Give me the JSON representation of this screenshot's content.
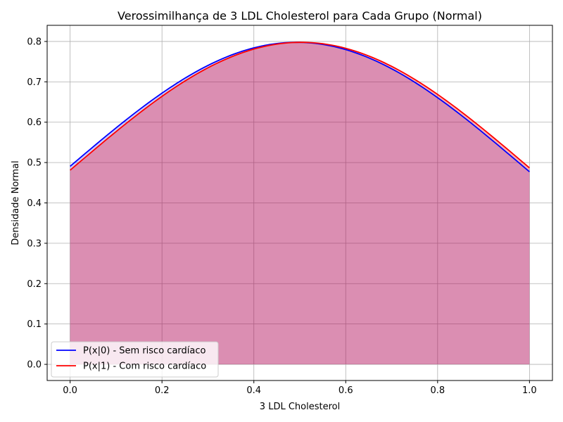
{
  "chart_data": {
    "type": "line",
    "title": "Verossimilhança de 3 LDL Cholesterol para Cada Grupo (Normal)",
    "xlabel": "3 LDL Cholesterol",
    "ylabel": "Densidade Normal",
    "xlim": [
      -0.05,
      1.05
    ],
    "ylim": [
      -0.04,
      0.84
    ],
    "xticks": [
      0.0,
      0.2,
      0.4,
      0.6,
      0.8,
      1.0
    ],
    "xtick_labels": [
      "0.0",
      "0.2",
      "0.4",
      "0.6",
      "0.8",
      "1.0"
    ],
    "yticks": [
      0.0,
      0.1,
      0.2,
      0.3,
      0.4,
      0.5,
      0.6,
      0.7,
      0.8
    ],
    "ytick_labels": [
      "0.0",
      "0.1",
      "0.2",
      "0.3",
      "0.4",
      "0.5",
      "0.6",
      "0.7",
      "0.8"
    ],
    "grid": true,
    "legend_location": "bottom-left",
    "series": [
      {
        "name": "P(x|0) - Sem risco cardíaco",
        "color": "#0000ff",
        "fill_color": "#0000ff",
        "mean": 0.493,
        "std": 0.5,
        "x": [
          0.0,
          0.1,
          0.2,
          0.3,
          0.4,
          0.5,
          0.6,
          0.7,
          0.8,
          0.9,
          1.0
        ],
        "values": [
          0.491,
          0.589,
          0.675,
          0.742,
          0.784,
          0.798,
          0.782,
          0.738,
          0.67,
          0.582,
          0.477
        ]
      },
      {
        "name": "P(x|1) - Com risco cardíaco",
        "color": "#ff0000",
        "fill_color": "#ff0000",
        "mean": 0.503,
        "std": 0.5,
        "x": [
          0.0,
          0.1,
          0.2,
          0.3,
          0.4,
          0.5,
          0.6,
          0.7,
          0.8,
          0.9,
          1.0
        ],
        "values": [
          0.482,
          0.58,
          0.667,
          0.736,
          0.78,
          0.798,
          0.785,
          0.743,
          0.678,
          0.592,
          0.487
        ]
      }
    ]
  }
}
